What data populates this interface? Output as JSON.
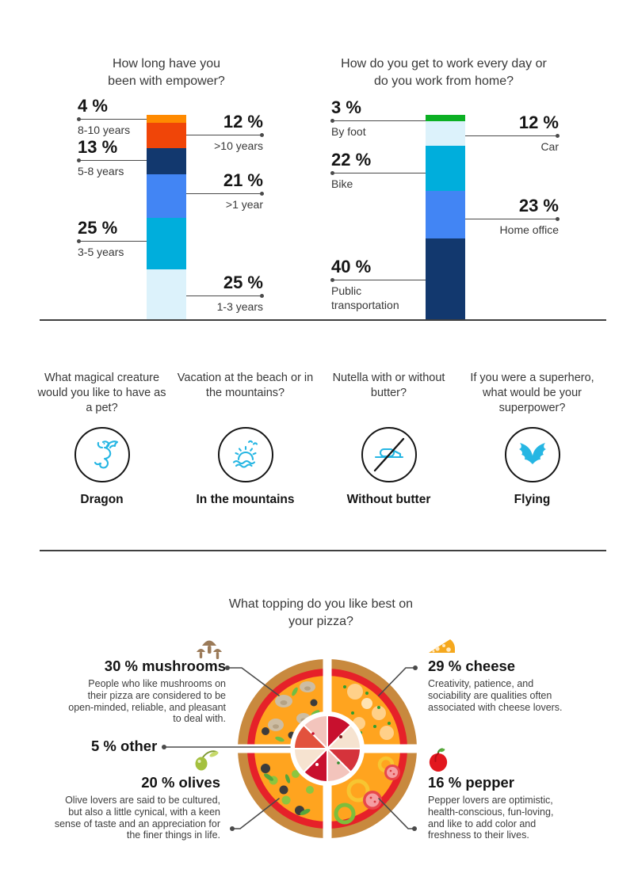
{
  "charts": {
    "tenure": {
      "title": "How long have you been with empower?",
      "segments": [
        {
          "label": "8-10 years",
          "value": 4,
          "color": "#FF8A00"
        },
        {
          "label": ">10 years",
          "value": 12,
          "color": "#F04508"
        },
        {
          "label": "5-8 years",
          "value": 13,
          "color": "#12386E"
        },
        {
          "label": ">1 year",
          "value": 21,
          "color": "#4285F4"
        },
        {
          "label": "3-5 years",
          "value": 25,
          "color": "#00AEDC"
        },
        {
          "label": "1-3 years",
          "value": 25,
          "color": "#DCF2FB"
        }
      ],
      "callouts_left": [
        {
          "pct": "4 %",
          "label": "8-10 years"
        },
        {
          "pct": "13 %",
          "label": "5-8 years"
        },
        {
          "pct": "25 %",
          "label": "3-5 years"
        }
      ],
      "callouts_right": [
        {
          "pct": "12 %",
          "label": ">10 years"
        },
        {
          "pct": "21 %",
          "label": ">1 year"
        },
        {
          "pct": "25 %",
          "label": "1-3 years"
        }
      ]
    },
    "commute": {
      "title": "How do you get to work every day or do you work from home?",
      "segments": [
        {
          "label": "By foot",
          "value": 3,
          "color": "#0CB024"
        },
        {
          "label": "Car",
          "value": 12,
          "color": "#DCF2FB"
        },
        {
          "label": "Bike",
          "value": 22,
          "color": "#00AEDC"
        },
        {
          "label": "Home office",
          "value": 23,
          "color": "#4285F4"
        },
        {
          "label": "Public transportation",
          "value": 40,
          "color": "#12386E"
        }
      ],
      "callouts_left": [
        {
          "pct": "3 %",
          "label": "By foot"
        },
        {
          "pct": "22 %",
          "label": "Bike"
        },
        {
          "pct": "40 %",
          "label": "Public transportation"
        }
      ],
      "callouts_right": [
        {
          "pct": "12 %",
          "label": "Car"
        },
        {
          "pct": "23 %",
          "label": "Home office"
        }
      ]
    }
  },
  "fun_facts": [
    {
      "question": "What magical creature would you like to have as a pet?",
      "answer": "Dragon",
      "icon": "dragon-icon"
    },
    {
      "question": "Vacation at the beach or in the mountains?",
      "answer": "In the mountains",
      "icon": "sun-waves-icon"
    },
    {
      "question": "Nutella with or without butter?",
      "answer": "Without butter",
      "icon": "no-butter-icon"
    },
    {
      "question": "If you were a superhero, what would be your superpower?",
      "answer": "Flying",
      "icon": "wings-icon"
    }
  ],
  "pizza": {
    "title": "What topping do you like best on your pizza?",
    "toppings": [
      {
        "pct": "30 %",
        "name": "mushrooms",
        "color": "#9B7A58",
        "desc": "People who like mushrooms on their pizza are considered to be open-minded, reliable, and pleasant to deal with."
      },
      {
        "pct": "29 %",
        "name": "cheese",
        "color": "#F5A81E",
        "desc": "Creativity, patience, and sociability are qualities often associated with cheese lovers."
      },
      {
        "pct": "5 %",
        "name": "other",
        "color": "#D5333B",
        "desc": ""
      },
      {
        "pct": "20 %",
        "name": "olives",
        "color": "#A4C03E",
        "desc": "Olive lovers are said to be cultured, but also a little cynical, with a keen sense of taste and an appreciation for the finer things in life."
      },
      {
        "pct": "16 %",
        "name": "pepper",
        "color": "#E2171E",
        "desc": "Pepper lovers are optimistic, health-conscious, fun-loving, and like to add color and freshness to their lives."
      }
    ]
  },
  "icon_accent_color": "#26B6E3",
  "line_color": "#4a4a4a",
  "chart_data": [
    {
      "type": "bar",
      "title": "How long have you been with empower?",
      "categories": [
        "8-10 years",
        ">10 years",
        "5-8 years",
        ">1 year",
        "3-5 years",
        "1-3 years"
      ],
      "values": [
        4,
        12,
        13,
        21,
        25,
        25
      ],
      "xlabel": "",
      "ylabel": "",
      "ylim": [
        0,
        100
      ],
      "note": "single stacked percentage bar; labels connected by leader lines"
    },
    {
      "type": "bar",
      "title": "How do you get to work every day or do you work from home?",
      "categories": [
        "By foot",
        "Car",
        "Bike",
        "Home office",
        "Public transportation"
      ],
      "values": [
        3,
        12,
        22,
        23,
        40
      ],
      "xlabel": "",
      "ylabel": "",
      "ylim": [
        0,
        100
      ],
      "note": "single stacked percentage bar; labels connected by leader lines"
    },
    {
      "type": "pie",
      "title": "What topping do you like best on your pizza?",
      "categories": [
        "mushrooms",
        "cheese",
        "olives",
        "pepper",
        "other"
      ],
      "values": [
        30,
        29,
        20,
        16,
        5
      ],
      "note": "drawn as a pizza split into quadrants with a small centre pizza for 'other'"
    }
  ]
}
